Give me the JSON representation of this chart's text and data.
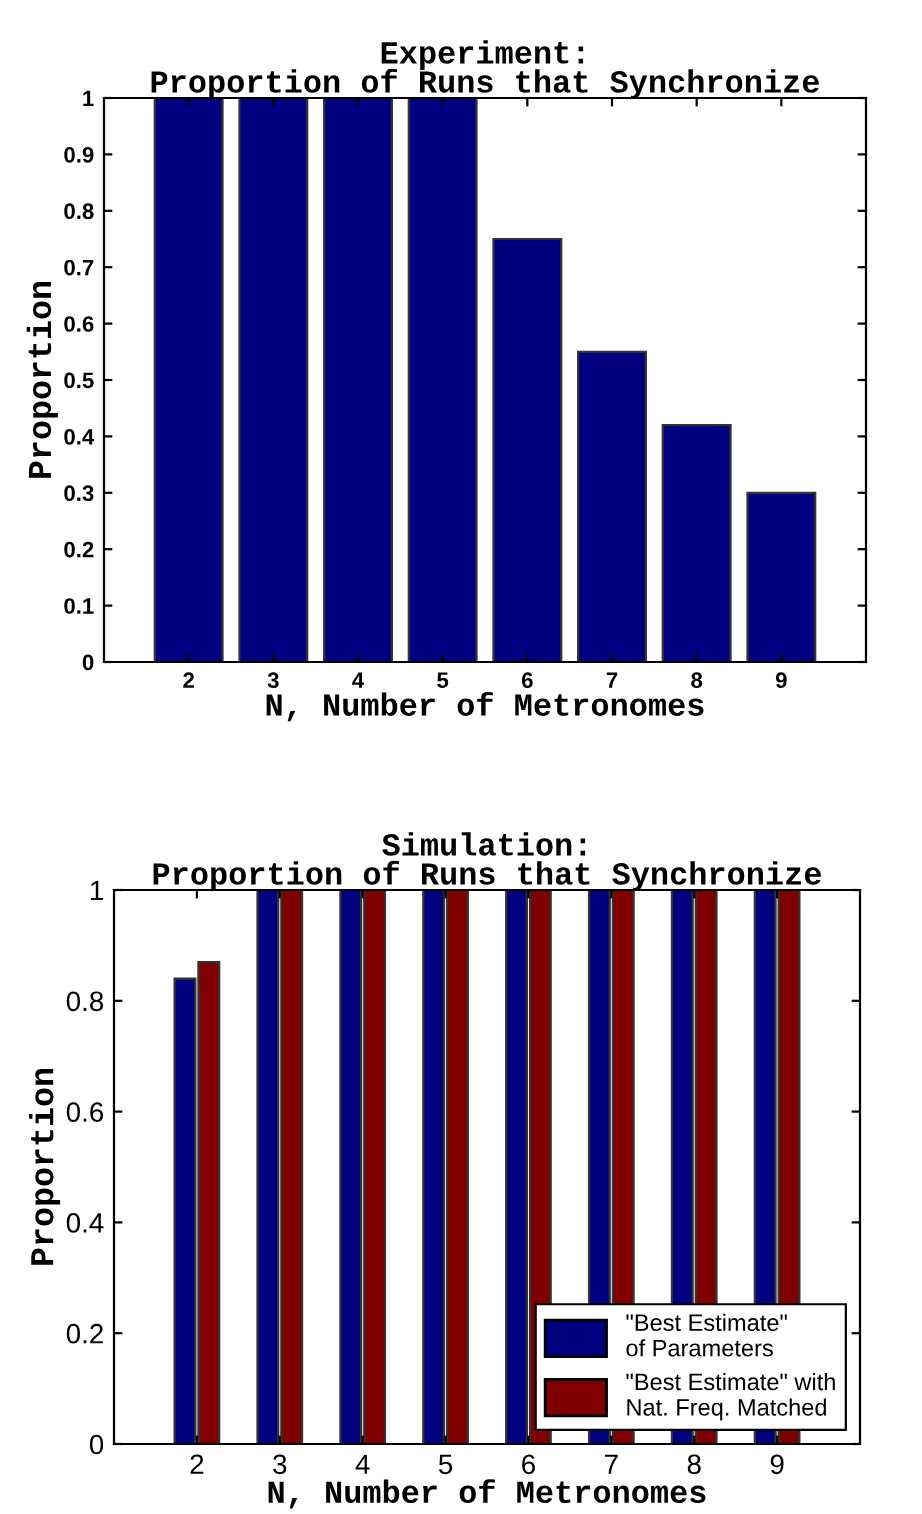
{
  "chart_data": [
    {
      "type": "bar",
      "title": "Experiment:\nProportion of Runs that Synchronize",
      "xlabel": "N, Number of Metronomes",
      "ylabel": "Proportion",
      "categories": [
        "2",
        "3",
        "4",
        "5",
        "6",
        "7",
        "8",
        "9"
      ],
      "color": "#000080",
      "values": [
        1,
        1,
        1,
        1,
        0.75,
        0.55,
        0.42,
        0.3
      ],
      "ylim": [
        0,
        1
      ],
      "yticks": [
        0,
        0.1,
        0.2,
        0.3,
        0.4,
        0.5,
        0.6,
        0.7,
        0.8,
        0.9,
        1
      ],
      "grid": false,
      "legend": false
    },
    {
      "type": "bar",
      "title": "Simulation:\nProportion of Runs that Synchronize",
      "xlabel": "N, Number of Metronomes",
      "ylabel": "Proportion",
      "categories": [
        "2",
        "3",
        "4",
        "5",
        "6",
        "7",
        "8",
        "9"
      ],
      "series": [
        {
          "name": "\"Best Estimate\"\nof Parameters",
          "color": "#000080",
          "values": [
            0.84,
            1,
            1,
            1,
            1,
            1,
            1,
            1
          ]
        },
        {
          "name": "\"Best Estimate\" with\nNat. Freq. Matched",
          "color": "#800000",
          "values": [
            0.87,
            1,
            1,
            1,
            1,
            1,
            1,
            1
          ]
        }
      ],
      "ylim": [
        0,
        1
      ],
      "yticks": [
        0,
        0.2,
        0.4,
        0.6,
        0.8,
        1
      ],
      "grid": false,
      "legend": "lower right"
    }
  ]
}
